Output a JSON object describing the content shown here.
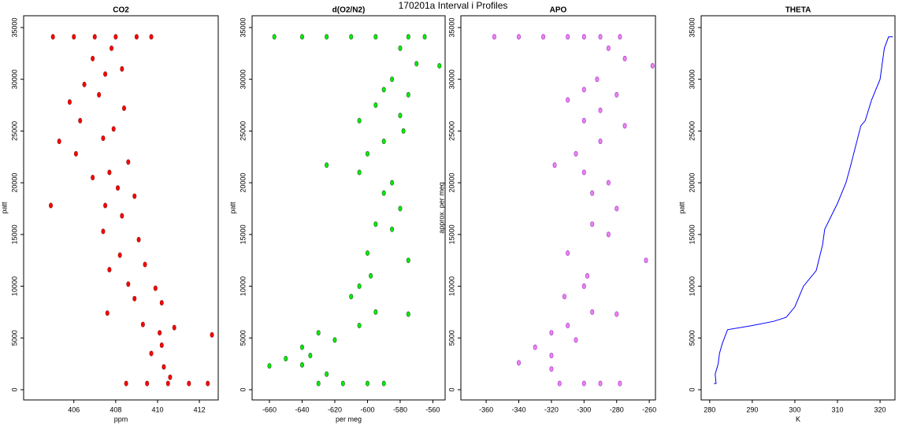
{
  "title": "170201a   Interval i Profiles",
  "chart_data": [
    {
      "type": "scatter",
      "title": "CO2",
      "xlabel": "ppm",
      "ylabel": "patt",
      "xlim": [
        403.6,
        412.9
      ],
      "ylim": [
        -990,
        36140
      ],
      "xticks": [
        406,
        408,
        410,
        412
      ],
      "yticks": [
        0,
        5000,
        10000,
        15000,
        20000,
        25000,
        30000,
        35000
      ],
      "series": [
        {
          "color": "#ff0000",
          "edge": "#8b1a1a",
          "x": [
            405,
            406,
            407,
            408,
            409,
            409.7,
            407.8,
            406.9,
            408.3,
            407.5,
            406.5,
            407.2,
            405.8,
            408.4,
            406.3,
            407.9,
            405.3,
            407.4,
            406.1,
            408.6,
            407.7,
            406.9,
            408.1,
            408.9,
            407.5,
            404.9,
            408.3,
            407.4,
            409.1,
            408.2,
            409.4,
            407.7,
            408.6,
            409.9,
            408.9,
            410.2,
            407.6,
            409.3,
            410.8,
            410.1,
            410.2,
            412.6,
            409.7,
            410.3,
            410.6,
            408.5,
            409.5,
            410.5,
            411.5,
            412.4
          ],
          "y": [
            34100,
            34100,
            34100,
            34100,
            34100,
            34100,
            33000,
            32000,
            31000,
            30500,
            29500,
            28500,
            27800,
            27200,
            26000,
            25200,
            24000,
            24300,
            22800,
            22000,
            21000,
            20500,
            19500,
            18700,
            17800,
            17800,
            16800,
            15300,
            14500,
            13000,
            12100,
            11600,
            10200,
            9800,
            8800,
            8400,
            7400,
            6300,
            6000,
            5500,
            4300,
            5300,
            3500,
            2200,
            1200,
            600,
            600,
            600,
            600,
            600
          ]
        }
      ]
    },
    {
      "type": "scatter",
      "title": "d(O2/N2)",
      "xlabel": "per meg",
      "ylabel": "patt",
      "xlim": [
        -670.6,
        -552.5
      ],
      "ylim": [
        -990,
        36140
      ],
      "xticks": [
        -660,
        -640,
        -620,
        -600,
        -580,
        -560
      ],
      "yticks": [
        0,
        5000,
        10000,
        15000,
        20000,
        25000,
        30000,
        35000
      ],
      "series": [
        {
          "color": "#00ee00",
          "edge": "#2f5f2f",
          "x": [
            -657,
            -640,
            -625,
            -610,
            -595,
            -575,
            -565,
            -580,
            -570,
            -556,
            -585,
            -590,
            -575,
            -595,
            -580,
            -605,
            -578,
            -590,
            -600,
            -625,
            -605,
            -585,
            -590,
            -580,
            -595,
            -585,
            -600,
            -575,
            -598,
            -605,
            -610,
            -595,
            -575,
            -605,
            -630,
            -620,
            -640,
            -635,
            -650,
            -640,
            -660,
            -625,
            -630,
            -615,
            -600,
            -590
          ],
          "y": [
            34100,
            34100,
            34100,
            34100,
            34100,
            34100,
            34100,
            33000,
            31500,
            31300,
            30000,
            29000,
            28500,
            27500,
            26500,
            26000,
            25000,
            24000,
            22800,
            21700,
            21000,
            20000,
            19000,
            17500,
            16000,
            15500,
            13200,
            12500,
            11000,
            10000,
            9000,
            7500,
            7300,
            6200,
            5500,
            4800,
            4100,
            3300,
            3000,
            2400,
            2300,
            1500,
            600,
            600,
            600,
            600
          ]
        }
      ]
    },
    {
      "type": "scatter",
      "title": "APO",
      "ylabel": "approx. per meg",
      "xlim": [
        -375.5,
        -256.2
      ],
      "ylim": [
        -990,
        36140
      ],
      "xticks": [
        -360,
        -340,
        -320,
        -300,
        -280,
        -260
      ],
      "yticks": [
        0,
        5000,
        10000,
        15000,
        20000,
        25000,
        30000,
        35000
      ],
      "series": [
        {
          "color": "#ee82ee",
          "edge": "#9932cc",
          "x": [
            -355,
            -340,
            -325,
            -310,
            -300,
            -290,
            -278,
            -285,
            -275,
            -258,
            -292,
            -300,
            -280,
            -310,
            -290,
            -300,
            -275,
            -290,
            -305,
            -318,
            -300,
            -285,
            -295,
            -280,
            -295,
            -285,
            -310,
            -262,
            -298,
            -300,
            -312,
            -295,
            -280,
            -310,
            -320,
            -305,
            -330,
            -320,
            -340,
            -320,
            -315,
            -300,
            -290,
            -278
          ],
          "y": [
            34100,
            34100,
            34100,
            34100,
            34100,
            34100,
            34100,
            33000,
            32000,
            31300,
            30000,
            29000,
            28500,
            28000,
            27000,
            26000,
            25500,
            24000,
            22800,
            21700,
            21000,
            20000,
            19000,
            17500,
            16000,
            15000,
            13200,
            12500,
            11000,
            10000,
            9000,
            7500,
            7300,
            6200,
            5500,
            4800,
            4100,
            3300,
            2600,
            2000,
            600,
            600,
            600,
            600
          ]
        }
      ]
    },
    {
      "type": "line",
      "title": "THETA",
      "xlabel": "K",
      "ylabel": "patt",
      "xlim": [
        278,
        323.5
      ],
      "ylim": [
        -990,
        36140
      ],
      "xticks": [
        280,
        290,
        300,
        310,
        320
      ],
      "yticks": [
        0,
        5000,
        10000,
        15000,
        20000,
        25000,
        30000,
        35000
      ],
      "series": [
        {
          "color": "#0000ff",
          "x": [
            281,
            281.5,
            281.3,
            282,
            282.3,
            283,
            284.2,
            290,
            295,
            298,
            300,
            302,
            305,
            306.5,
            307,
            310,
            312,
            313,
            315.5,
            316.5,
            318,
            320,
            321,
            322,
            323
          ],
          "y": [
            600,
            600,
            1500,
            2500,
            3500,
            4500,
            5800,
            6200,
            6600,
            7000,
            8000,
            10000,
            11500,
            14000,
            15500,
            18000,
            20000,
            21500,
            25500,
            26000,
            28000,
            30000,
            33000,
            34100,
            34100
          ]
        }
      ]
    }
  ]
}
